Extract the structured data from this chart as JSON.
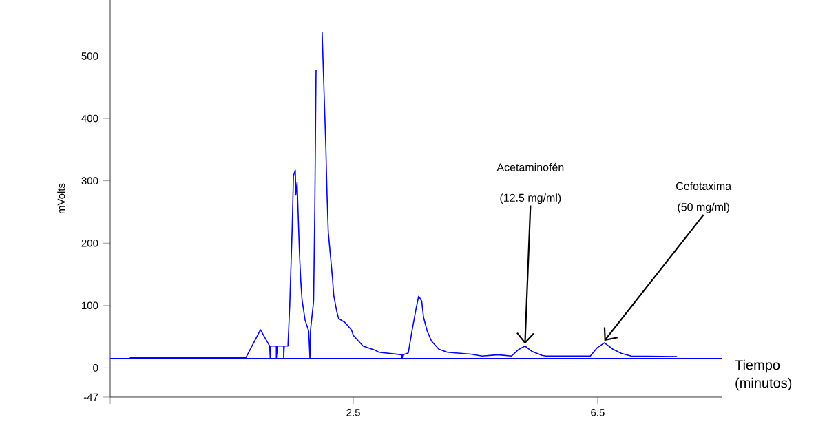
{
  "chart_data": {
    "type": "line",
    "xlabel": "Tiempo (minutos)",
    "ylabel": "mVolts",
    "xlim": [
      -1.48,
      8.53
    ],
    "ylim": [
      -47,
      590
    ],
    "xticks": [
      {
        "value": -1.48,
        "label": null
      },
      2.5,
      6.5
    ],
    "yticks": [
      -47,
      0,
      100,
      200,
      300,
      400,
      500
    ],
    "grid": false,
    "marker": "none",
    "line_style": "solid",
    "series": [
      {
        "color": "#0000ff",
        "x": [
          -1.16,
          0.58,
          0.74,
          0.98,
          1.13,
          1.14,
          1.15,
          1.24,
          1.24,
          1.26,
          1.36,
          1.36,
          1.37,
          1.43,
          1.46,
          1.5,
          1.52,
          1.55,
          1.56,
          1.58,
          1.6,
          1.62,
          1.64,
          1.66,
          1.71,
          1.77,
          1.79,
          1.8,
          1.85,
          1.87,
          1.89,
          1.93,
          1.97,
          1.99,
          2.02,
          2.05,
          2.07,
          2.09,
          2.13,
          2.16,
          2.18,
          2.23,
          2.26,
          2.36,
          2.47,
          2.5,
          2.66,
          2.84,
          2.92,
          3.29,
          3.3,
          3.31,
          3.4,
          3.46,
          3.53,
          3.57,
          3.62,
          3.65,
          3.71,
          3.78,
          3.9,
          4.04,
          4.42,
          4.61,
          4.87,
          5.09,
          5.2,
          5.31,
          5.43,
          5.59,
          5.65,
          6.38,
          6.49,
          6.61,
          6.75,
          6.89,
          7.05,
          7.8
        ],
        "values": [
          16,
          16,
          16,
          61,
          35,
          15,
          35,
          35,
          15,
          35,
          35,
          15,
          35,
          35,
          102,
          226,
          308,
          317,
          277,
          297,
          238,
          181,
          140,
          110,
          77,
          59,
          15,
          61,
          107,
          256,
          478,
          null,
          null,
          538,
          446,
          355,
          277,
          218,
          175,
          143,
          116,
          90,
          79,
          73,
          61,
          52,
          35,
          29,
          25,
          21,
          15,
          21,
          24,
          59,
          96,
          115,
          107,
          81,
          59,
          43,
          30,
          25,
          22,
          19,
          21,
          19,
          29,
          35,
          26,
          20,
          19,
          19,
          32,
          40,
          30,
          23,
          19,
          18
        ]
      }
    ],
    "ref_lines": [
      {
        "axis": "y",
        "value": 15,
        "color": "#0000ff"
      }
    ],
    "annotations": [
      "Acetaminofén",
      {
        "text": "(12.5 mg/ml)",
        "x": 5.31,
        "y": 35
      },
      "Cefotaxima",
      {
        "text": "(50 mg/ml)",
        "x": 6.61,
        "y": 40
      }
    ]
  }
}
